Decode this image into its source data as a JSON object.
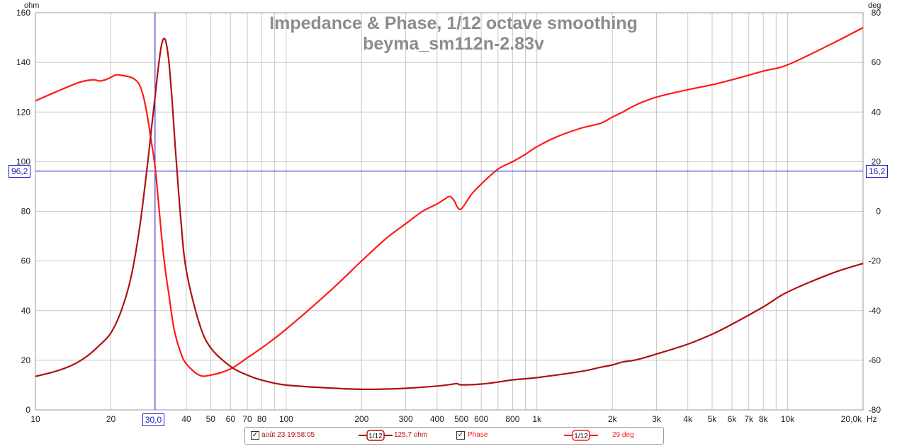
{
  "chart_data": {
    "type": "line",
    "title": "Impedance & Phase, 1/12 octave smoothing",
    "subtitle": "beyma_sm112n-2.83v",
    "x_scale": "log",
    "xlim": [
      10,
      20000
    ],
    "x_unit": "Hz",
    "x_tick_labels": [
      {
        "value": 10,
        "label": "10"
      },
      {
        "value": 20,
        "label": "20"
      },
      {
        "value": 30,
        "label": "30"
      },
      {
        "value": 40,
        "label": "40"
      },
      {
        "value": 50,
        "label": "50"
      },
      {
        "value": 60,
        "label": "60"
      },
      {
        "value": 70,
        "label": "70"
      },
      {
        "value": 80,
        "label": "80"
      },
      {
        "value": 100,
        "label": "100"
      },
      {
        "value": 200,
        "label": "200"
      },
      {
        "value": 300,
        "label": "300"
      },
      {
        "value": 400,
        "label": "400"
      },
      {
        "value": 500,
        "label": "500"
      },
      {
        "value": 600,
        "label": "600"
      },
      {
        "value": 800,
        "label": "800"
      },
      {
        "value": 1000,
        "label": "1k"
      },
      {
        "value": 2000,
        "label": "2k"
      },
      {
        "value": 3000,
        "label": "3k"
      },
      {
        "value": 4000,
        "label": "4k"
      },
      {
        "value": 5000,
        "label": "5k"
      },
      {
        "value": 6000,
        "label": "6k"
      },
      {
        "value": 7000,
        "label": "7k"
      },
      {
        "value": 8000,
        "label": "8k"
      },
      {
        "value": 10000,
        "label": "10k"
      },
      {
        "value": 20000,
        "label": "20,0k"
      }
    ],
    "y_left": {
      "unit": "ohm",
      "range": [
        0,
        160
      ],
      "ticks": [
        0,
        20,
        40,
        60,
        80,
        100,
        120,
        140,
        160
      ]
    },
    "y_right": {
      "unit": "deg",
      "range": [
        -80,
        80
      ],
      "ticks": [
        -80,
        -60,
        -40,
        -20,
        0,
        20,
        40,
        60,
        80
      ]
    },
    "grid": true,
    "series": [
      {
        "name": "août 23 19:58:05",
        "axis": "left",
        "color": "#b01010",
        "x": [
          10,
          12,
          14,
          16,
          18,
          20,
          22,
          24,
          26,
          28,
          29,
          30,
          31,
          32,
          33,
          34,
          35,
          36,
          38,
          40,
          45,
          50,
          60,
          70,
          80,
          100,
          150,
          200,
          250,
          300,
          400,
          450,
          480,
          500,
          600,
          700,
          800,
          1000,
          1500,
          1800,
          2000,
          2200,
          2500,
          3000,
          4000,
          5000,
          6000,
          8000,
          10000,
          15000,
          20000
        ],
        "y": [
          13.5,
          15.5,
          18,
          21.5,
          26,
          31,
          40,
          53,
          73,
          99,
          113,
          126,
          139,
          148,
          149,
          141,
          126,
          108,
          77,
          56,
          35,
          25,
          17.5,
          14,
          12,
          10,
          8.8,
          8.3,
          8.4,
          8.7,
          9.6,
          10.2,
          10.6,
          10.1,
          10.4,
          11.2,
          12.1,
          13,
          15.5,
          17.2,
          18.1,
          19.3,
          20.2,
          22.5,
          26.5,
          30.5,
          34.5,
          41.5,
          47.5,
          55,
          59
        ]
      },
      {
        "name": "Phase",
        "axis": "right",
        "color": "#ff1a1a",
        "x": [
          10,
          12,
          15,
          17,
          18,
          19,
          20,
          21,
          22,
          24,
          25,
          26,
          27,
          28,
          29,
          30,
          31,
          32,
          33,
          34,
          35,
          36,
          38,
          40,
          45,
          50,
          60,
          70,
          80,
          100,
          150,
          200,
          250,
          300,
          350,
          400,
          430,
          450,
          470,
          480,
          500,
          550,
          600,
          700,
          800,
          900,
          1000,
          1200,
          1500,
          1800,
          2000,
          2200,
          2500,
          3000,
          4000,
          5000,
          6000,
          8000,
          10000,
          15000,
          20000
        ],
        "y": [
          44.5,
          48,
          52,
          53,
          52.5,
          53,
          54,
          55,
          54.8,
          54,
          53,
          51,
          46,
          38,
          28,
          18,
          3,
          -12,
          -24,
          -33,
          -42,
          -49,
          -57,
          -61.5,
          -66,
          -66,
          -63.5,
          -59,
          -55,
          -47.5,
          -32,
          -20,
          -11,
          -5,
          0,
          3,
          5,
          6,
          4,
          2,
          1,
          7,
          11,
          17,
          20,
          23,
          26,
          30,
          33.5,
          35.5,
          38,
          40,
          43,
          46,
          49,
          51,
          53,
          56.5,
          59,
          67.5,
          74
        ]
      }
    ],
    "cursor": {
      "x_label": "30,0",
      "y_left_label": "96,2",
      "y_right_label": "16,2"
    }
  },
  "legend": {
    "row1": {
      "checked": true,
      "name": "août 23 19:58:05",
      "smoothing": "1/12",
      "value": "125,7 ohm"
    },
    "row2": {
      "checked": true,
      "name": "Phase",
      "smoothing": "1/12",
      "value": "29 deg"
    }
  },
  "colors": {
    "impedance": "#b01010",
    "phase": "#ff1a1a",
    "cursor": "#1a1acc",
    "grid": "#c8c8c8"
  }
}
